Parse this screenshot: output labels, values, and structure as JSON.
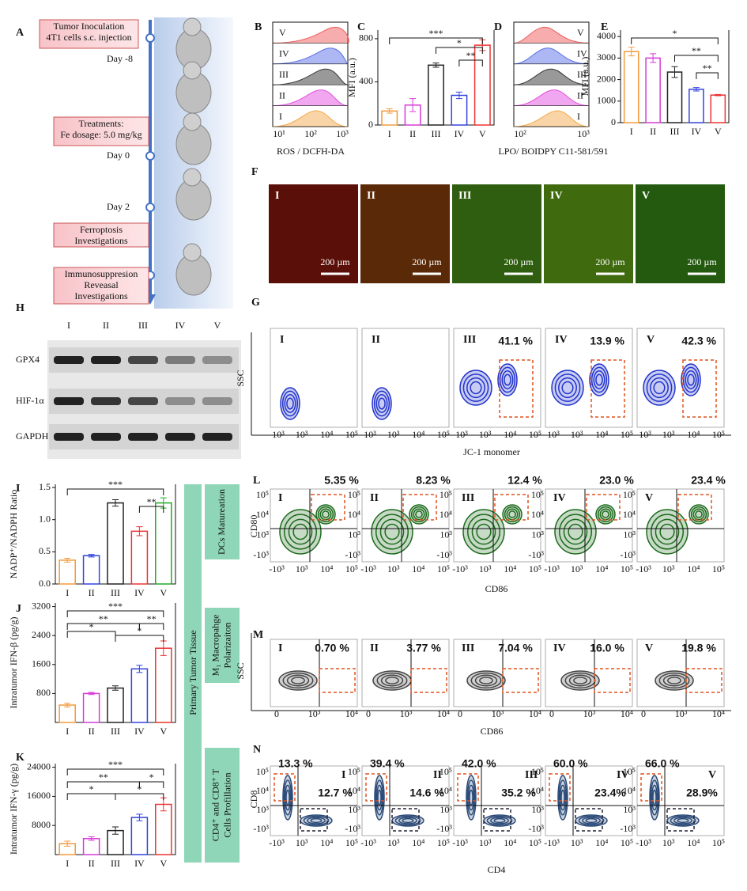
{
  "panel_letters": [
    "A",
    "B",
    "C",
    "D",
    "E",
    "F",
    "G",
    "H",
    "I",
    "J",
    "K",
    "L",
    "M",
    "N"
  ],
  "groups": [
    "I",
    "II",
    "III",
    "IV",
    "V"
  ],
  "timeline": {
    "boxes": [
      [
        "Tumor Inoculation",
        "4T1 cells s.c. injection"
      ],
      [
        "Treatments:",
        "Fe dosage: 5.0 mg/kg"
      ],
      [
        "Ferroptosis",
        "Investigations"
      ],
      [
        "Immunosuppresion",
        "Reveasal",
        "Investigations"
      ]
    ],
    "days": [
      "Day -8",
      "Day 0",
      "Day 2"
    ]
  },
  "histograms": {
    "B": {
      "xticks": [
        "10¹",
        "10²",
        "10³"
      ]
    },
    "D": {
      "xticks": [
        "10²",
        "10³"
      ]
    },
    "B_xlabel": "ROS / DCFH-DA",
    "D_xlabel": "LPO/ BOIDPY C11-581/591"
  },
  "images": {
    "scale": "200 µm"
  },
  "western": {
    "rows": [
      "GPX4",
      "HIF-1α",
      "GAPDH"
    ]
  },
  "side": {
    "tissue": "Primary Tumor Tissue",
    "steps": [
      [
        "DCs Matureation"
      ],
      [
        "M₁ Macropahge",
        "Polarizaiton"
      ],
      [
        "CD4⁺ and CD8⁺ T",
        "Cells Profillation"
      ]
    ]
  },
  "flow": {
    "G": {
      "percents": [
        "41.1 %",
        "13.9 %",
        "42.3 %"
      ],
      "ylabel": "SSC",
      "xlabel": "JC-1 monomer",
      "xticks": [
        "-10³",
        "10³",
        "10⁴",
        "10⁵"
      ]
    },
    "L": {
      "percents": [
        "5.35 %",
        "8.23 %",
        "12.4 %",
        "23.0 %",
        "23.4 %"
      ],
      "ylabel": "CD80",
      "xlabel": "CD86",
      "xticks": [
        "-10³",
        "10³",
        "10⁴",
        "10⁵"
      ],
      "yticks": [
        "10⁵",
        "10⁴",
        "10³",
        "-10³"
      ]
    },
    "M": {
      "percents": [
        "0.70 %",
        "3.77 %",
        "7.04 %",
        "16.0 %",
        "19.8 %"
      ],
      "ylabel": "SSC",
      "xlabel": "CD86",
      "xticks": [
        "0",
        "10³",
        "10⁴"
      ]
    },
    "N": {
      "percents": [
        "13.3 %",
        "39.4 %",
        "42.0 %",
        "60.0 %",
        "66.0 %"
      ],
      "lower": [
        "12.7 %",
        "14.6 %",
        "35.2 %",
        "23.4%",
        "28.9%"
      ],
      "ylabel": "CD8",
      "xlabel": "CD4",
      "xticks": [
        "-10³",
        "10³",
        "10⁴",
        "10⁵"
      ],
      "yticks": [
        "10⁵",
        "10⁴",
        "10³",
        "-10³"
      ]
    }
  },
  "chart_data": [
    {
      "type": "bar",
      "ylabel": "MFI (a.u.)",
      "categories": [
        "I",
        "II",
        "III",
        "IV",
        "V"
      ],
      "values": [
        130,
        185,
        555,
        275,
        740
      ],
      "errors": [
        20,
        60,
        20,
        30,
        50
      ],
      "colors": [
        "#f39a3c",
        "#d93ad9",
        "#222222",
        "#3344dd",
        "#ee3333"
      ],
      "ylim": [
        0,
        880
      ],
      "yticks": [
        0,
        400,
        800
      ],
      "significance": [
        "***",
        "*",
        "**"
      ]
    },
    {
      "type": "bar",
      "ylabel": "MFI (a.u.)",
      "categories": [
        "I",
        "II",
        "III",
        "IV",
        "V"
      ],
      "values": [
        3300,
        3000,
        2350,
        1550,
        1280
      ],
      "errors": [
        200,
        200,
        250,
        80,
        30
      ],
      "colors": [
        "#f39a3c",
        "#d93ad9",
        "#222222",
        "#3344dd",
        "#ee3333"
      ],
      "ylim": [
        0,
        4300
      ],
      "yticks": [
        0,
        1000,
        2000,
        3000,
        4000
      ],
      "significance": [
        "*",
        "**",
        "**"
      ]
    },
    {
      "type": "bar",
      "ylabel": "NADP⁺/NADPH Ratio",
      "categories": [
        "I",
        "II",
        "III",
        "IV",
        "V"
      ],
      "values": [
        0.37,
        0.44,
        1.26,
        0.82,
        1.26
      ],
      "errors": [
        0.03,
        0.02,
        0.05,
        0.07,
        0.08
      ],
      "colors": [
        "#f39a3c",
        "#3344dd",
        "#222222",
        "#ee3333",
        "#22aa22"
      ],
      "ylim": [
        0,
        1.55
      ],
      "yticks": [
        {
          "value": 0,
          "label": "0.0"
        },
        0.5,
        {
          "value": 1,
          "label": "1.0"
        },
        1.5
      ],
      "significance": [
        "***",
        "**"
      ]
    },
    {
      "type": "bar",
      "ylabel": "Intratumor IFN-β (pg/g)",
      "categories": [
        "I",
        "II",
        "III",
        "IV",
        "V"
      ],
      "values": [
        480,
        800,
        950,
        1480,
        2050
      ],
      "errors": [
        50,
        30,
        60,
        100,
        200
      ],
      "colors": [
        "#f39a3c",
        "#d93ad9",
        "#222222",
        "#3344dd",
        "#ee3333"
      ],
      "ylim": [
        0,
        3300
      ],
      "yticks": [
        800,
        1600,
        2400,
        3200
      ],
      "significance": [
        "***",
        "**",
        "*",
        "*",
        "**"
      ]
    },
    {
      "type": "bar",
      "ylabel": "Intratumor IFN-γ (pg/g)",
      "categories": [
        "I",
        "II",
        "III",
        "IV",
        "V"
      ],
      "values": [
        3000,
        4400,
        6600,
        10200,
        13800
      ],
      "errors": [
        700,
        500,
        1000,
        900,
        1800
      ],
      "colors": [
        "#f39a3c",
        "#d93ad9",
        "#222222",
        "#3344dd",
        "#ee3333"
      ],
      "ylim": [
        0,
        25000
      ],
      "yticks": [
        8000,
        16000,
        24000
      ],
      "significance": [
        "***",
        "**",
        "*",
        "*",
        "*"
      ]
    }
  ]
}
